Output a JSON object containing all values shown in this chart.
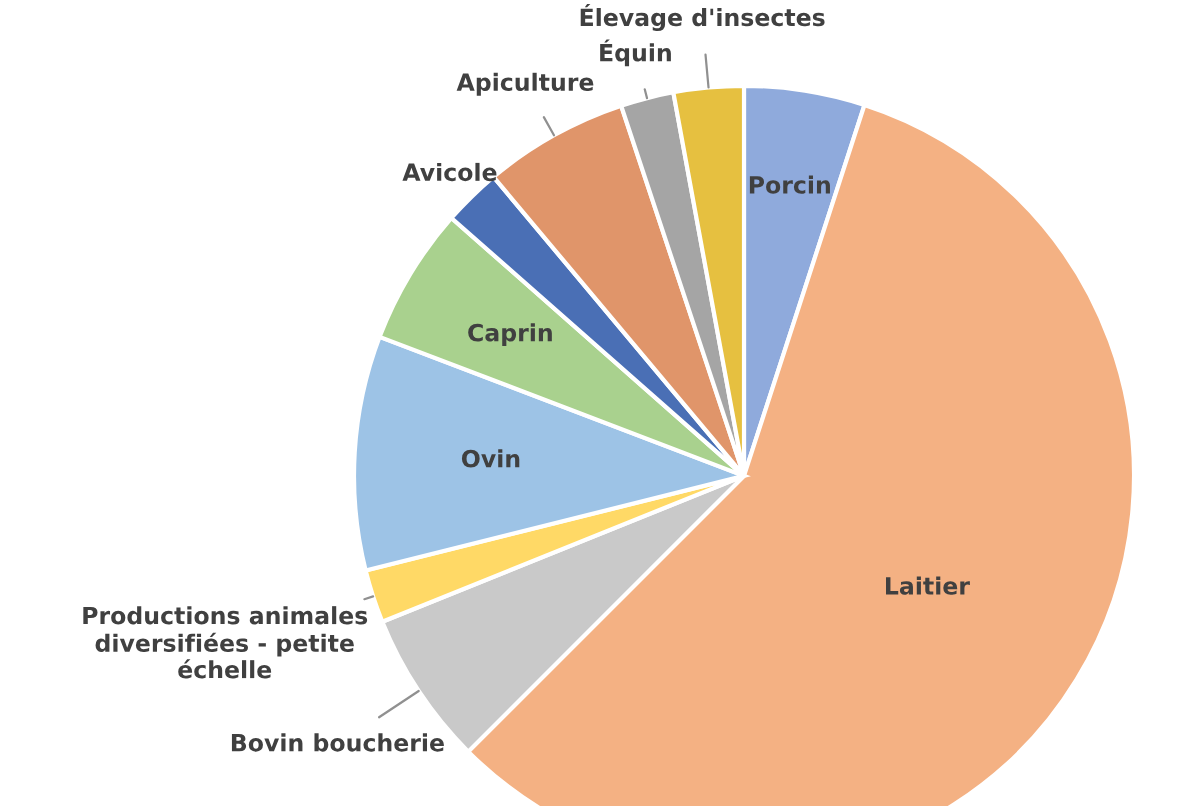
{
  "chart_data": {
    "type": "pie",
    "categories": [
      "Porcin",
      "Laitier",
      "Bovin boucherie",
      "Productions animales\ndiversifiées - petite\néchelle",
      "Ovin",
      "Caprin",
      "Avicole",
      "Apiculture",
      "Équin",
      "Élevage d'insectes"
    ],
    "values": [
      5,
      57.5,
      6.4,
      2.2,
      9.7,
      5.7,
      2.4,
      6,
      2.2,
      2.9
    ],
    "colors": [
      "#8faadc",
      "#f4b183",
      "#c9c9c9",
      "#ffd966",
      "#9dc3e6",
      "#a9d18e",
      "#4a6fb5",
      "#e0956a",
      "#a5a5a5",
      "#e6c040"
    ]
  }
}
